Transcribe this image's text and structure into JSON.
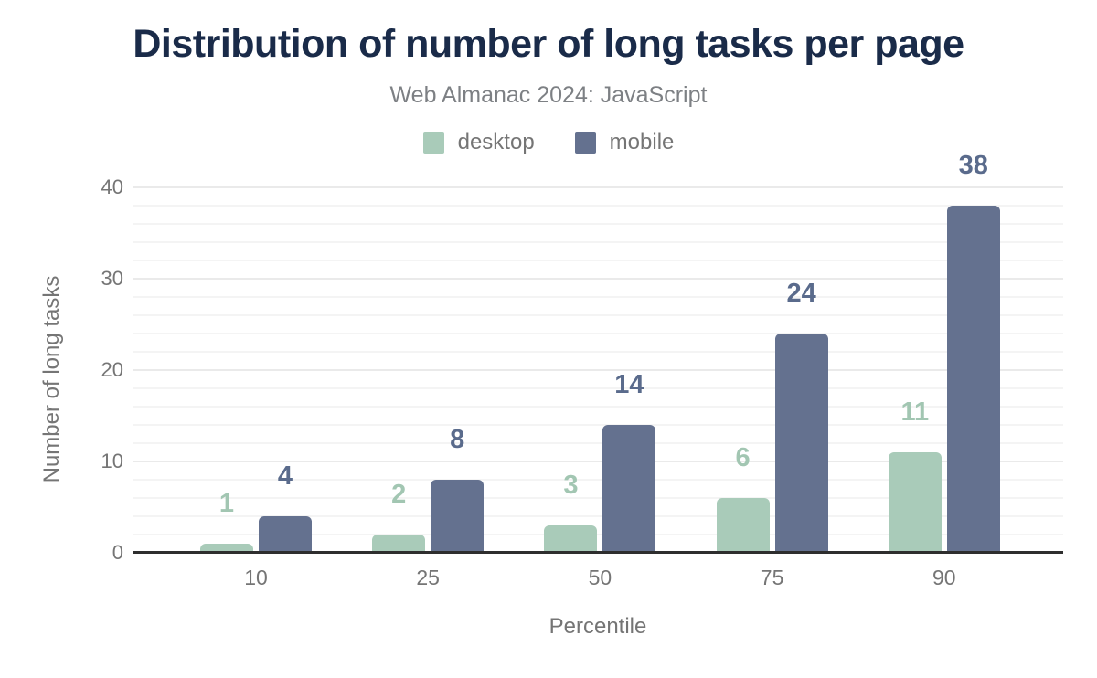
{
  "header": {
    "title": "Distribution of number of long tasks per page",
    "subtitle": "Web Almanac 2024: JavaScript"
  },
  "colors": {
    "title_text": "#1a2b49",
    "muted_text": "#757575",
    "axis_line": "#2e2e2e",
    "gridline_minor": "#f4f4f4",
    "gridline_major": "#eaeaea",
    "desktop_bar": "#a9cbb9",
    "desktop_label": "#a2c6b2",
    "mobile_bar": "#64718f",
    "mobile_label": "#5a6b8c"
  },
  "chart_data": {
    "type": "bar",
    "title": "Distribution of number of long tasks per page",
    "subtitle": "Web Almanac 2024: JavaScript",
    "categories": [
      "10",
      "25",
      "50",
      "75",
      "90"
    ],
    "series": [
      {
        "name": "desktop",
        "color": "#a9cbb9",
        "label_color": "#a2c6b2",
        "values": [
          1,
          2,
          3,
          6,
          11
        ]
      },
      {
        "name": "mobile",
        "color": "#64718f",
        "label_color": "#5a6b8c",
        "values": [
          4,
          8,
          14,
          24,
          38
        ]
      }
    ],
    "xlabel": "Percentile",
    "ylabel": "Number of long tasks",
    "ylim": [
      0,
      40
    ],
    "yticks": [
      0,
      10,
      20,
      30,
      40
    ],
    "minor_grid_step": 2,
    "grid": true,
    "legend_position": "top",
    "value_labels": true
  }
}
